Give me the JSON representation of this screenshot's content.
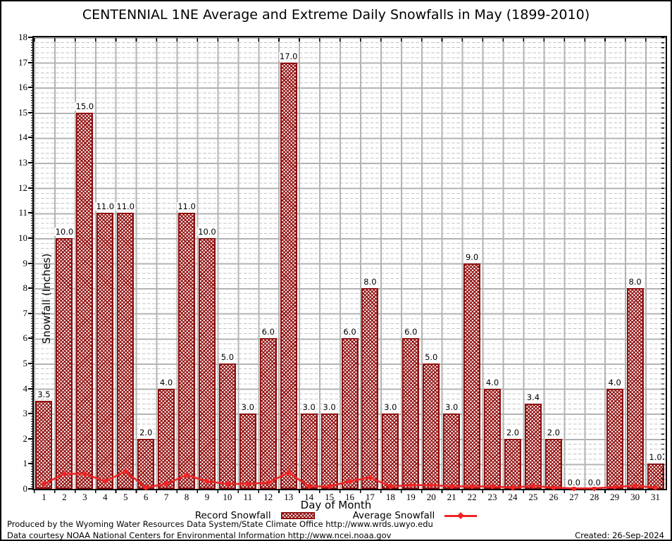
{
  "title": "CENTENNIAL 1NE Average and Extreme Daily Snowfalls in May (1899-2010)",
  "y_axis": {
    "label": "Snowfall (Inches)",
    "min": 0,
    "max": 18,
    "tick_step": 1
  },
  "x_axis": {
    "label": "Day of Month"
  },
  "legend": {
    "record_label": "Record Snowfall",
    "average_label": "Average Snowfall"
  },
  "footer": {
    "line1": "Produced by the Wyoming Water Resources Data System/State Climate Office http://www.wrds.uwyo.edu",
    "line2": "Data courtesy NOAA National Centers for Environmental Information http://www.ncei.noaa.gov",
    "created": "Created: 26-Sep-2024"
  },
  "colors": {
    "bar_edge": "#8f1010",
    "bar_hatch": "#961414",
    "avg_line": "#ee2424",
    "grid_major": "#b3b3b3",
    "grid_minor": "#c3c3c3"
  },
  "chart_data": {
    "type": "bar",
    "title": "CENTENNIAL 1NE Average and Extreme Daily Snowfalls in May (1899-2010)",
    "xlabel": "Day of Month",
    "ylabel": "Snowfall (Inches)",
    "ylim": [
      0,
      18
    ],
    "grid": true,
    "legend_position": "bottom",
    "categories": [
      1,
      2,
      3,
      4,
      5,
      6,
      7,
      8,
      9,
      10,
      11,
      12,
      13,
      14,
      15,
      16,
      17,
      18,
      19,
      20,
      21,
      22,
      23,
      24,
      25,
      26,
      27,
      28,
      29,
      30,
      31
    ],
    "series": [
      {
        "name": "Record Snowfall",
        "type": "bar",
        "values": [
          3.5,
          10.0,
          15.0,
          11.0,
          11.0,
          2.0,
          4.0,
          11.0,
          10.0,
          5.0,
          3.0,
          6.0,
          17.0,
          3.0,
          3.0,
          6.0,
          8.0,
          3.0,
          6.0,
          5.0,
          3.0,
          9.0,
          4.0,
          2.0,
          3.4,
          2.0,
          0.0,
          0.0,
          4.0,
          8.0,
          1.0
        ],
        "labels": [
          "3.5",
          "10.0",
          "15.0",
          "11.0",
          "11.0",
          "2.0",
          "4.0",
          "11.0",
          "10.0",
          "5.0",
          "3.0",
          "6.0",
          "17.0",
          "3.0",
          "3.0",
          "6.0",
          "8.0",
          "3.0",
          "6.0",
          "5.0",
          "3.0",
          "9.0",
          "4.0",
          "2.0",
          "3.4",
          "2.0",
          "0.0",
          "0.0",
          "4.0",
          "8.0",
          "1.0"
        ]
      },
      {
        "name": "Average Snowfall",
        "type": "line",
        "values": [
          0.2,
          0.6,
          0.6,
          0.3,
          0.7,
          0.05,
          0.2,
          0.55,
          0.3,
          0.2,
          0.2,
          0.25,
          0.65,
          0.1,
          0.1,
          0.3,
          0.45,
          0.1,
          0.15,
          0.15,
          0.1,
          0.1,
          0.1,
          0.05,
          0.12,
          0.05,
          0.02,
          0.02,
          0.08,
          0.12,
          0.05
        ]
      }
    ]
  }
}
